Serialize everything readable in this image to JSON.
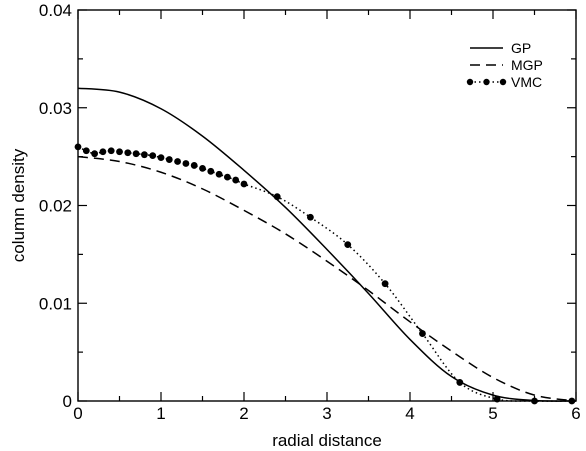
{
  "chart_data": {
    "type": "line",
    "xlabel": "radial distance",
    "ylabel": "column density",
    "xlim": [
      0,
      6
    ],
    "ylim": [
      0,
      0.04
    ],
    "x_ticks": [
      0,
      1,
      2,
      3,
      4,
      5,
      6
    ],
    "x_tick_labels": [
      "0",
      "1",
      "2",
      "3",
      "4",
      "5",
      "6"
    ],
    "y_ticks": [
      0,
      0.01,
      0.02,
      0.03,
      0.04
    ],
    "y_tick_labels": [
      "0",
      "0.01",
      "0.02",
      "0.03",
      "0.04"
    ],
    "grid": false,
    "legend_position": "top-right",
    "colors": {
      "line": "#000000",
      "background": "#ffffff"
    },
    "series": [
      {
        "name": "GP",
        "style": "solid",
        "x": [
          0,
          0.5,
          1.0,
          1.5,
          2.0,
          2.5,
          3.0,
          3.5,
          4.0,
          4.5,
          5.0,
          5.5,
          6.0
        ],
        "y": [
          0.032,
          0.0316,
          0.0299,
          0.0271,
          0.0236,
          0.0198,
          0.0155,
          0.011,
          0.0063,
          0.0025,
          0.0006,
          5e-05,
          0.0
        ]
      },
      {
        "name": "MGP",
        "style": "dashed",
        "x": [
          0,
          0.5,
          1.0,
          1.5,
          2.0,
          2.5,
          3.0,
          3.5,
          4.0,
          4.5,
          5.0,
          5.5,
          6.0
        ],
        "y": [
          0.025,
          0.0245,
          0.0234,
          0.0217,
          0.0195,
          0.0171,
          0.0143,
          0.0113,
          0.0081,
          0.0051,
          0.0024,
          0.0006,
          0.0
        ]
      },
      {
        "name": "VMC",
        "style": "dotted-markers",
        "x": [
          0,
          0.1,
          0.2,
          0.3,
          0.4,
          0.5,
          0.6,
          0.7,
          0.8,
          0.9,
          1.0,
          1.1,
          1.2,
          1.3,
          1.4,
          1.5,
          1.6,
          1.7,
          1.8,
          1.9,
          2.0,
          2.4,
          2.8,
          3.25,
          3.7,
          4.15,
          4.6,
          5.05,
          5.5,
          5.95
        ],
        "y": [
          0.026,
          0.0256,
          0.0253,
          0.0255,
          0.0256,
          0.0255,
          0.0254,
          0.0253,
          0.0252,
          0.0251,
          0.0249,
          0.0247,
          0.0245,
          0.0243,
          0.0241,
          0.0238,
          0.0235,
          0.0232,
          0.0229,
          0.0226,
          0.0222,
          0.0209,
          0.0188,
          0.016,
          0.012,
          0.0069,
          0.0019,
          0.0002,
          0.0,
          0.0
        ]
      }
    ]
  }
}
